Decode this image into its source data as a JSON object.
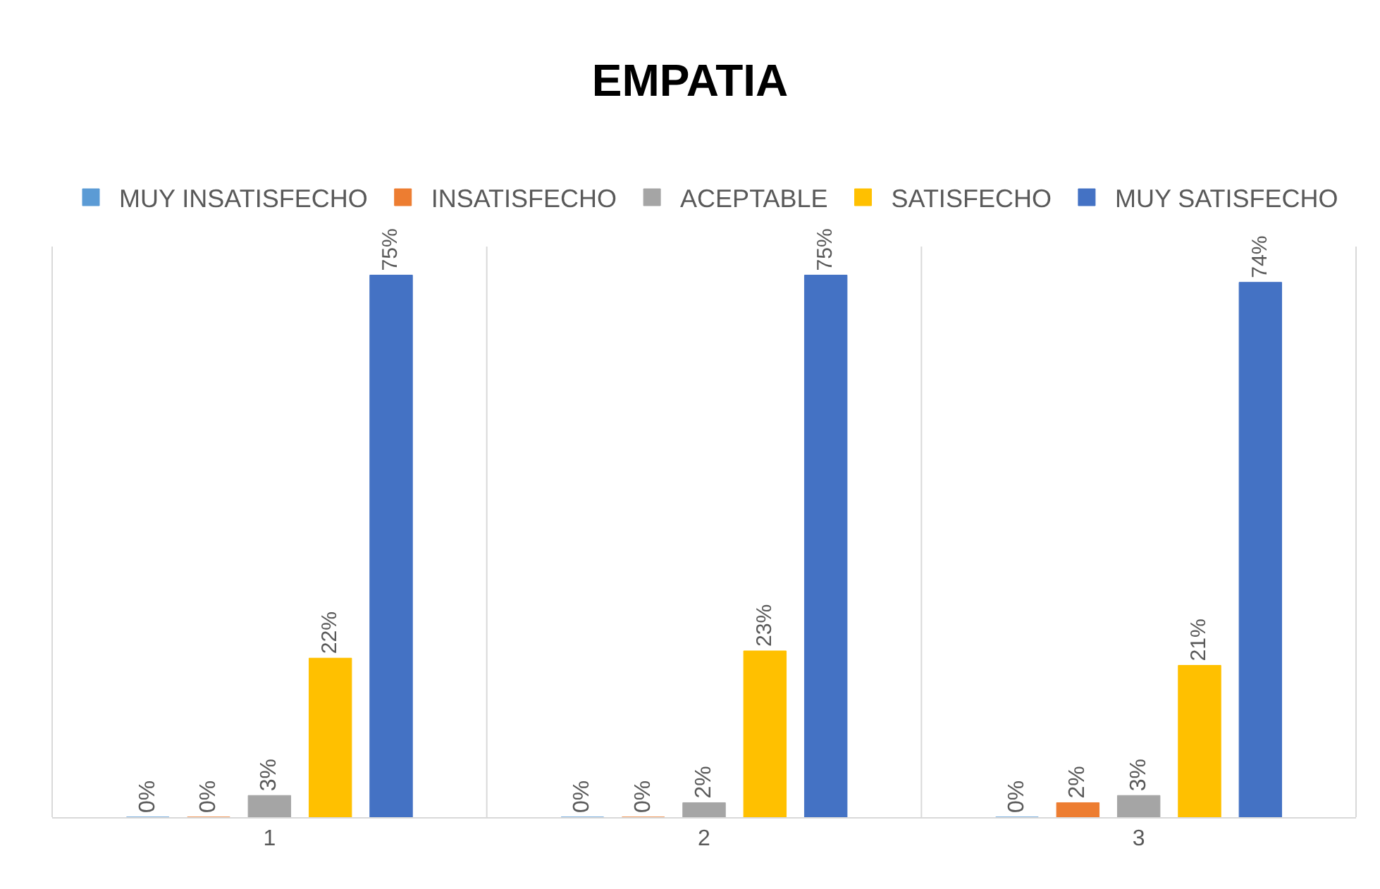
{
  "chart_data": {
    "type": "bar",
    "title": "EMPATIA",
    "categories": [
      "1",
      "2",
      "3"
    ],
    "series": [
      {
        "name": "MUY INSATISFECHO",
        "color": "#5b9bd5",
        "values": [
          0,
          0,
          0
        ],
        "value_labels": [
          "0%",
          "0%",
          "0%"
        ]
      },
      {
        "name": "INSATISFECHO",
        "color": "#ed7d31",
        "values": [
          0,
          0,
          2
        ],
        "value_labels": [
          "0%",
          "0%",
          "2%"
        ]
      },
      {
        "name": "ACEPTABLE",
        "color": "#a5a5a5",
        "values": [
          3,
          2,
          3
        ],
        "value_labels": [
          "3%",
          "2%",
          "3%"
        ]
      },
      {
        "name": "SATISFECHO",
        "color": "#ffc000",
        "values": [
          22,
          23,
          21
        ],
        "value_labels": [
          "22%",
          "23%",
          "21%"
        ]
      },
      {
        "name": "MUY SATISFECHO",
        "color": "#4472c4",
        "values": [
          75,
          75,
          74
        ],
        "value_labels": [
          "75%",
          "75%",
          "74%"
        ]
      }
    ],
    "grid": "x",
    "legend": "top",
    "tick_labels": "x"
  }
}
